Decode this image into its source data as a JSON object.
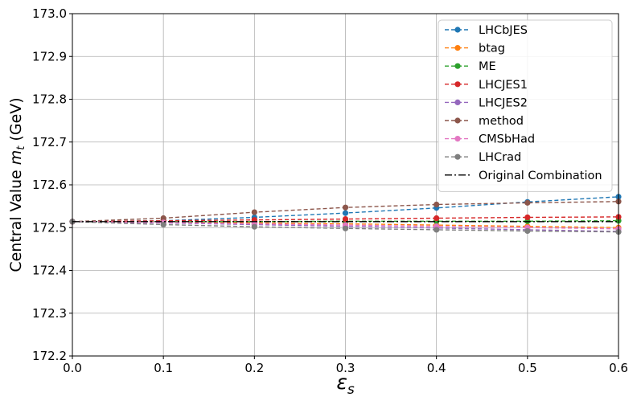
{
  "chart_data": {
    "type": "line",
    "title": "",
    "xlabel": "ε",
    "xlabel_sub": "s",
    "ylabel": "Central Value ",
    "ylabel_var": "m",
    "ylabel_sub": "t",
    "ylabel_unit": " (GeV)",
    "xlim": [
      0.0,
      0.6
    ],
    "ylim": [
      172.2,
      173.0
    ],
    "xticks": [
      "0.0",
      "0.1",
      "0.2",
      "0.3",
      "0.4",
      "0.5",
      "0.6"
    ],
    "yticks": [
      "172.2",
      "172.3",
      "172.4",
      "172.5",
      "172.6",
      "172.7",
      "172.8",
      "172.9",
      "173.0"
    ],
    "grid": true,
    "legend_position": "top-right",
    "x": [
      0.0,
      0.1,
      0.2,
      0.3,
      0.4,
      0.5,
      0.6
    ],
    "series": [
      {
        "name": "LHCbJES",
        "color": "#1f77b4",
        "style": "dashed-marker",
        "values": [
          172.514,
          172.516,
          172.524,
          172.534,
          172.546,
          172.56,
          172.572
        ]
      },
      {
        "name": "btag",
        "color": "#ff7f0e",
        "style": "dashed-marker",
        "values": [
          172.514,
          172.513,
          172.511,
          172.509,
          172.506,
          172.503,
          172.5
        ]
      },
      {
        "name": "ME",
        "color": "#2ca02c",
        "style": "dashed-marker",
        "values": [
          172.514,
          172.514,
          172.514,
          172.515,
          172.515,
          172.515,
          172.516
        ]
      },
      {
        "name": "LHCJES1",
        "color": "#d62728",
        "style": "dashed-marker",
        "values": [
          172.514,
          172.516,
          172.518,
          172.52,
          172.522,
          172.524,
          172.525
        ]
      },
      {
        "name": "LHCJES2",
        "color": "#9467bd",
        "style": "dashed-marker",
        "values": [
          172.514,
          172.511,
          172.507,
          172.503,
          172.499,
          172.495,
          172.491
        ]
      },
      {
        "name": "method",
        "color": "#8c564b",
        "style": "dashed-marker",
        "values": [
          172.514,
          172.522,
          172.536,
          172.547,
          172.554,
          172.558,
          172.561
        ]
      },
      {
        "name": "CMSbHad",
        "color": "#e377c2",
        "style": "dashed-marker",
        "values": [
          172.514,
          172.512,
          172.509,
          172.506,
          172.503,
          172.5,
          172.497
        ]
      },
      {
        "name": "LHCrad",
        "color": "#7f7f7f",
        "style": "dashed-marker",
        "values": [
          172.514,
          172.507,
          172.502,
          172.498,
          172.495,
          172.492,
          172.49
        ]
      },
      {
        "name": "Original Combination",
        "color": "#000000",
        "style": "dashdot",
        "values": [
          172.514,
          172.514,
          172.514,
          172.514,
          172.514,
          172.514,
          172.514
        ]
      }
    ]
  }
}
